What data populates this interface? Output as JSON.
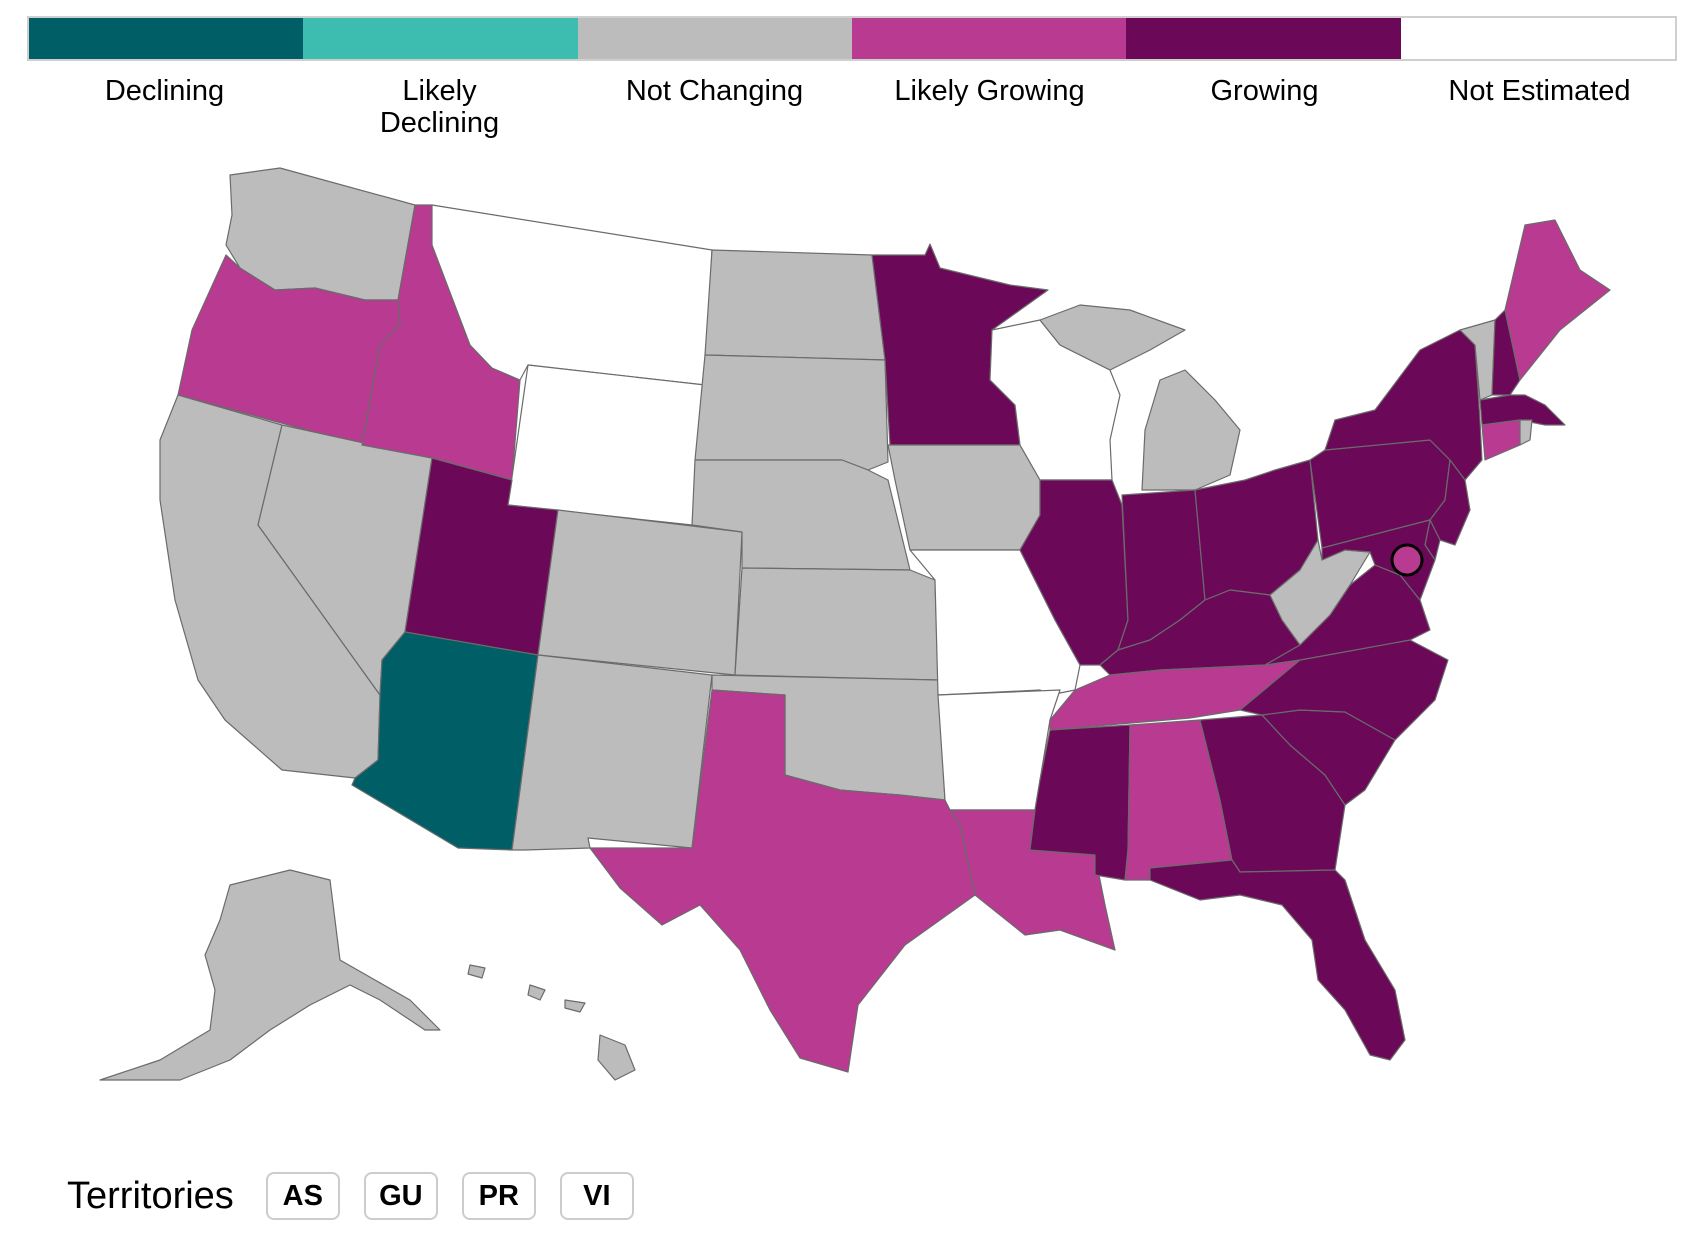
{
  "colors": {
    "declining": "#005f66",
    "likely_declining": "#3dbcb0",
    "not_changing": "#bcbcbc",
    "likely_growing": "#b83a91",
    "growing": "#6b0858",
    "not_estimated": "#ffffff"
  },
  "legend": [
    {
      "key": "declining",
      "label": "Declining"
    },
    {
      "key": "likely_declining",
      "label": "Likely\nDeclining"
    },
    {
      "key": "not_changing",
      "label": "Not Changing"
    },
    {
      "key": "likely_growing",
      "label": "Likely Growing"
    },
    {
      "key": "growing",
      "label": "Growing"
    },
    {
      "key": "not_estimated",
      "label": "Not Estimated"
    }
  ],
  "states": {
    "WA": "not_changing",
    "OR": "likely_growing",
    "CA": "not_changing",
    "NV": "not_changing",
    "ID": "likely_growing",
    "MT": "not_estimated",
    "WY": "not_estimated",
    "UT": "growing",
    "AZ": "declining",
    "CO": "not_changing",
    "NM": "not_changing",
    "ND": "not_changing",
    "SD": "not_changing",
    "NE": "not_changing",
    "KS": "not_changing",
    "OK": "not_changing",
    "TX": "likely_growing",
    "MN": "growing",
    "IA": "not_changing",
    "MO": "not_estimated",
    "AR": "not_estimated",
    "LA": "likely_growing",
    "WI": "not_estimated",
    "IL": "growing",
    "MI": "not_changing",
    "IN": "growing",
    "OH": "growing",
    "KY": "growing",
    "TN": "likely_growing",
    "MS": "growing",
    "AL": "likely_growing",
    "GA": "growing",
    "FL": "growing",
    "SC": "growing",
    "NC": "growing",
    "VA": "growing",
    "WV": "not_changing",
    "PA": "growing",
    "NY": "growing",
    "VT": "not_changing",
    "NH": "growing",
    "ME": "likely_growing",
    "MA": "growing",
    "CT": "likely_growing",
    "RI": "not_changing",
    "NJ": "growing",
    "DE": "growing",
    "MD": "growing",
    "DC": "likely_growing",
    "AK": "not_changing",
    "HI": "not_changing"
  },
  "territories": {
    "label": "Territories",
    "buttons": [
      "AS",
      "GU",
      "PR",
      "VI"
    ]
  }
}
